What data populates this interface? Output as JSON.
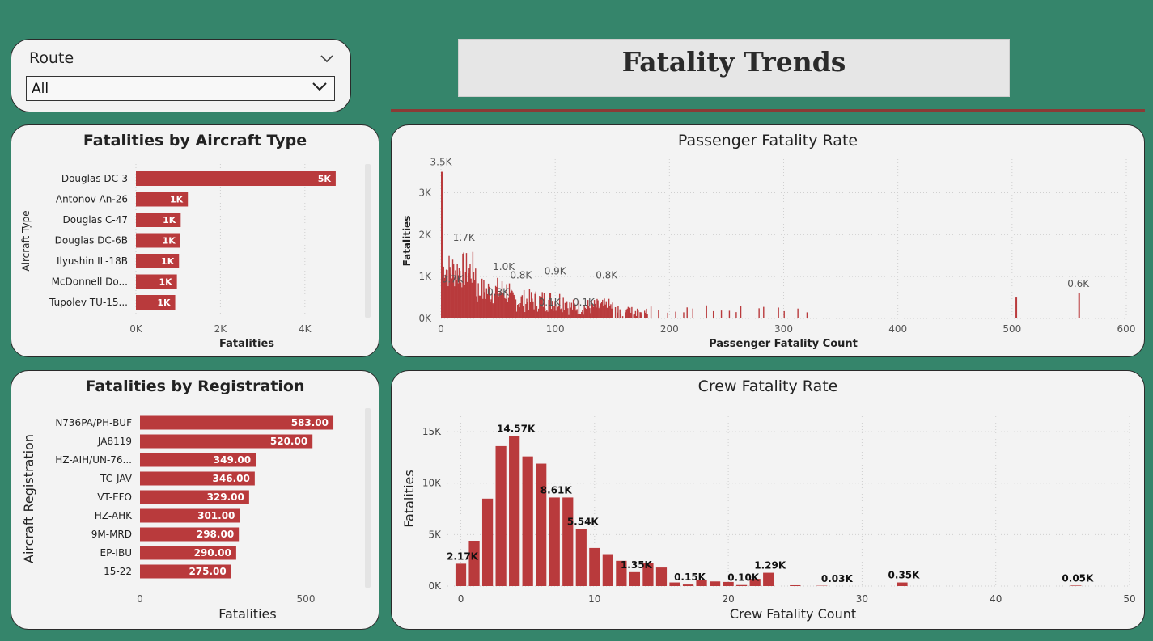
{
  "slicer": {
    "title": "Route",
    "selected": "All",
    "chevron_icon": "chevron-down-icon"
  },
  "header": {
    "title": "Fatality Trends"
  },
  "colors": {
    "bar": "#b93a3c",
    "background": "#35856b",
    "card": "#f3f3f3",
    "accent_line": "#8b3a35"
  },
  "chart_data": [
    {
      "id": "aircraft",
      "type": "bar",
      "orientation": "horizontal",
      "title": "Fatalities by Aircraft Type",
      "xlabel": "Fatalities",
      "ylabel": "Aircraft Type",
      "categories": [
        "Douglas DC-3",
        "Antonov An-26",
        "Douglas C-47",
        "Douglas DC-6B",
        "Ilyushin IL-18B",
        "McDonnell Do...",
        "Tupolev TU-15..."
      ],
      "values": [
        4730,
        1230,
        1060,
        1050,
        1020,
        970,
        930
      ],
      "data_labels": [
        "5K",
        "1K",
        "1K",
        "1K",
        "1K",
        "1K",
        "1K"
      ],
      "xlim": [
        0,
        5000
      ],
      "xticks": [
        0,
        2000,
        4000
      ],
      "xtick_labels": [
        "0K",
        "2K",
        "4K"
      ],
      "grid": true
    },
    {
      "id": "registration",
      "type": "bar",
      "orientation": "horizontal",
      "title": "Fatalities by Registration",
      "xlabel": "Fatalities",
      "ylabel": "Aircraft Registration",
      "categories": [
        "N736PA/PH-BUF",
        "JA8119",
        "HZ-AIH/UN-76...",
        "TC-JAV",
        "VT-EFO",
        "HZ-AHK",
        "9M-MRD",
        "EP-IBU",
        "15-22"
      ],
      "values": [
        583,
        520,
        349,
        346,
        329,
        301,
        298,
        290,
        275
      ],
      "data_labels": [
        "583.00",
        "520.00",
        "349.00",
        "346.00",
        "329.00",
        "301.00",
        "298.00",
        "290.00",
        "275.00"
      ],
      "xlim": [
        0,
        700
      ],
      "xticks": [
        0,
        500
      ],
      "xtick_labels": [
        "0",
        "500"
      ],
      "grid": false
    },
    {
      "id": "passenger",
      "type": "bar",
      "title": "Passenger Fatality Rate",
      "xlabel": "Passenger Fatality Count",
      "ylabel": "Fatalities",
      "xlim": [
        0,
        600
      ],
      "ylim": [
        0,
        3800
      ],
      "xticks": [
        0,
        100,
        200,
        300,
        400,
        500,
        600
      ],
      "yticks": [
        0,
        1000,
        2000,
        3000
      ],
      "ytick_labels": [
        "0K",
        "1K",
        "2K",
        "3K"
      ],
      "labels_shown": [
        {
          "x": 0,
          "y": 3500,
          "text": "3.5K"
        },
        {
          "x": 20,
          "y": 1700,
          "text": "1.7K"
        },
        {
          "x": 55,
          "y": 1000,
          "text": "1.0K"
        },
        {
          "x": 70,
          "y": 800,
          "text": "0.8K"
        },
        {
          "x": 100,
          "y": 900,
          "text": "0.9K"
        },
        {
          "x": 145,
          "y": 800,
          "text": "0.8K"
        },
        {
          "x": 558,
          "y": 600,
          "text": "0.6K"
        },
        {
          "x": 10,
          "y": 700,
          "text": "0.7K"
        },
        {
          "x": 50,
          "y": 400,
          "text": "0.3K"
        },
        {
          "x": 95,
          "y": 150,
          "text": "0.1K"
        },
        {
          "x": 125,
          "y": 150,
          "text": "0.1K"
        }
      ],
      "grid": true
    },
    {
      "id": "crew",
      "type": "bar",
      "title": "Crew Fatality Rate",
      "xlabel": "Crew Fatality Count",
      "ylabel": "Fatalities",
      "xlim": [
        -1,
        50
      ],
      "ylim": [
        0,
        16500
      ],
      "xticks": [
        0,
        10,
        20,
        30,
        40,
        50
      ],
      "yticks": [
        0,
        5000,
        10000,
        15000
      ],
      "ytick_labels": [
        "0K",
        "5K",
        "10K",
        "15K"
      ],
      "x": [
        0,
        1,
        2,
        3,
        4,
        5,
        6,
        7,
        8,
        9,
        10,
        11,
        12,
        13,
        14,
        15,
        16,
        17,
        18,
        19,
        20,
        21,
        22,
        23,
        25,
        27,
        33,
        46
      ],
      "values": [
        2170,
        4400,
        8500,
        13600,
        14570,
        12600,
        11900,
        8610,
        8610,
        5540,
        3700,
        3100,
        2450,
        1350,
        2250,
        1800,
        350,
        150,
        550,
        450,
        400,
        100,
        700,
        1290,
        80,
        30,
        350,
        50
      ],
      "data_labels": [
        {
          "x": 0,
          "text": "2.17K"
        },
        {
          "x": 4,
          "text": "14.57K"
        },
        {
          "x": 7,
          "text": "8.61K"
        },
        {
          "x": 9,
          "text": "5.54K"
        },
        {
          "x": 13,
          "text": "1.35K"
        },
        {
          "x": 17,
          "text": "0.15K"
        },
        {
          "x": 21,
          "text": "0.10K"
        },
        {
          "x": 23,
          "text": "1.29K"
        },
        {
          "x": 28,
          "text": "0.03K"
        },
        {
          "x": 33,
          "text": "0.35K"
        },
        {
          "x": 46,
          "text": "0.05K"
        }
      ],
      "grid": true
    }
  ]
}
